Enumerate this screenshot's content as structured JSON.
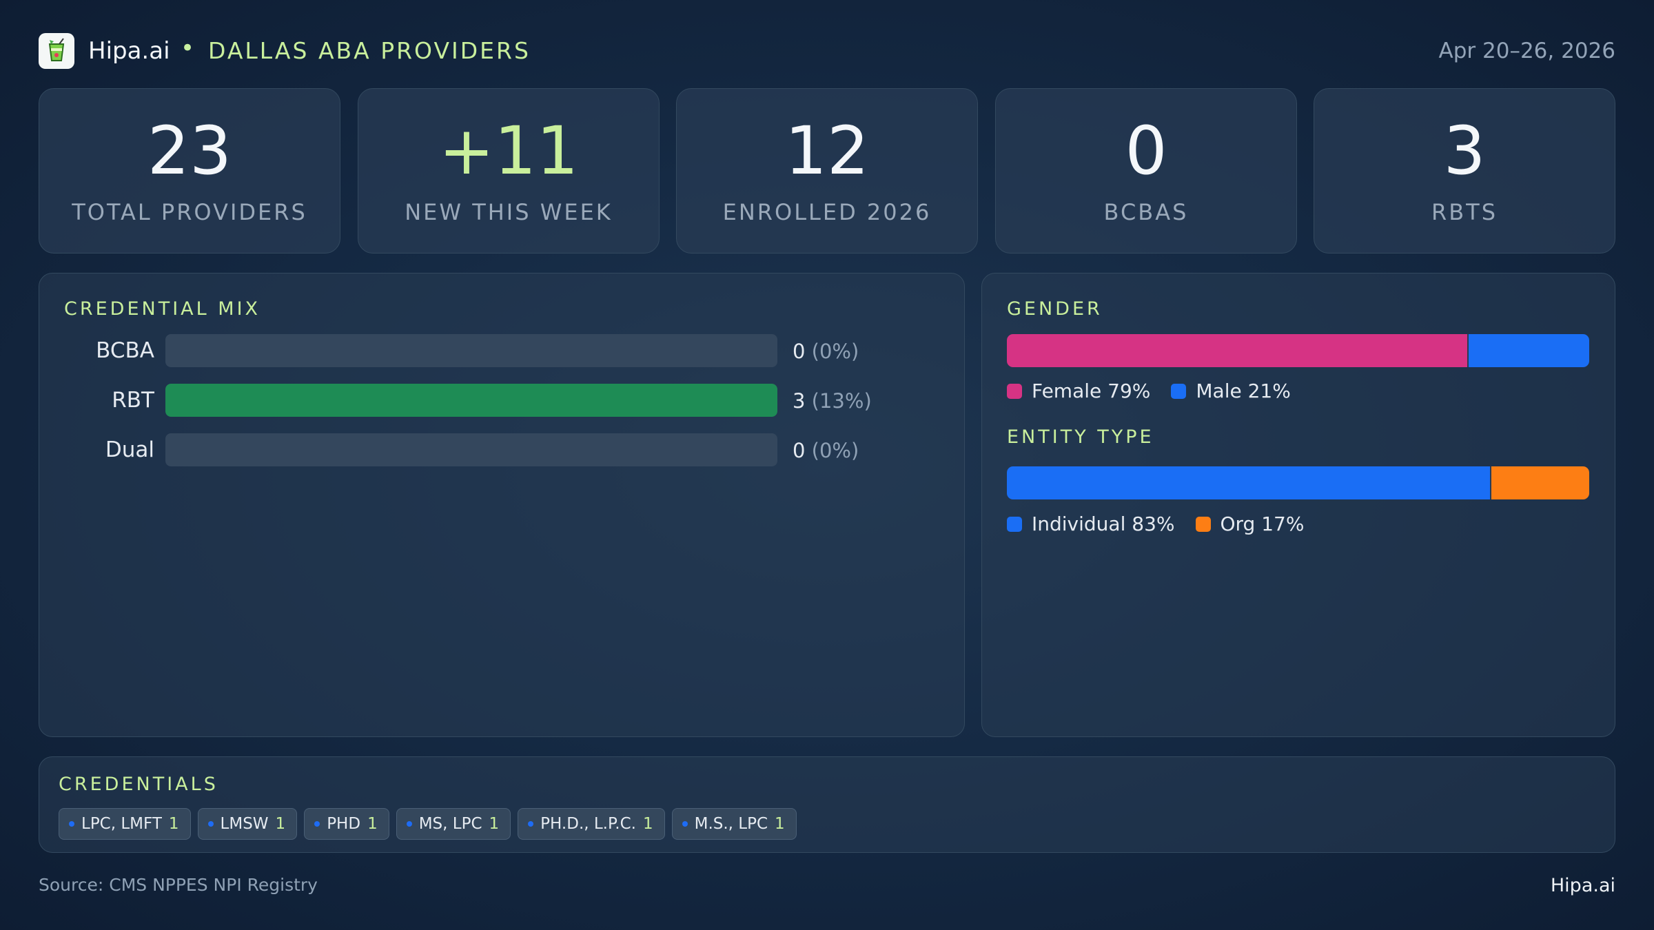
{
  "header": {
    "brand": "Hipa.ai",
    "separator": "•",
    "title": "DALLAS ABA PROVIDERS",
    "date_range": "Apr 20–26, 2026",
    "logo_icon": "cocktail-logo-icon"
  },
  "stats": [
    {
      "value": "23",
      "label": "TOTAL PROVIDERS"
    },
    {
      "value": "+11",
      "label": "NEW THIS WEEK"
    },
    {
      "value": "12",
      "label": "ENROLLED 2026"
    },
    {
      "value": "0",
      "label": "BCBAS"
    },
    {
      "value": "3",
      "label": "RBTS"
    }
  ],
  "credential_mix": {
    "title": "CREDENTIAL MIX",
    "rows": [
      {
        "label": "BCBA",
        "count": "0",
        "pct": "(0%)",
        "fill": 0
      },
      {
        "label": "RBT",
        "count": "3",
        "pct": "(13%)",
        "fill": 1
      },
      {
        "label": "Dual",
        "count": "0",
        "pct": "(0%)",
        "fill": 0
      }
    ]
  },
  "gender": {
    "title": "GENDER",
    "segments": [
      {
        "label": "Female 79%",
        "share": 0.79,
        "color": "#d63384"
      },
      {
        "label": "Male 21%",
        "share": 0.21,
        "color": "#1a6ef5"
      }
    ]
  },
  "entity_type": {
    "title": "ENTITY TYPE",
    "segments": [
      {
        "label": "Individual 83%",
        "share": 0.83,
        "color": "#1a6ef5"
      },
      {
        "label": "Org 17%",
        "share": 0.17,
        "color": "#fd7e14"
      }
    ]
  },
  "credentials": {
    "title": "CREDENTIALS",
    "chips": [
      {
        "label": "LPC, LMFT",
        "count": "1"
      },
      {
        "label": "LMSW",
        "count": "1"
      },
      {
        "label": "PHD",
        "count": "1"
      },
      {
        "label": "MS, LPC",
        "count": "1"
      },
      {
        "label": "PH.D., L.P.C.",
        "count": "1"
      },
      {
        "label": "M.S., LPC",
        "count": "1"
      }
    ]
  },
  "footer": {
    "source": "Source: CMS NPPES NPI Registry",
    "brand": "Hipa.ai"
  },
  "colors": {
    "accent": "#c9ef9c",
    "bar_fill": "#1e8c55"
  }
}
